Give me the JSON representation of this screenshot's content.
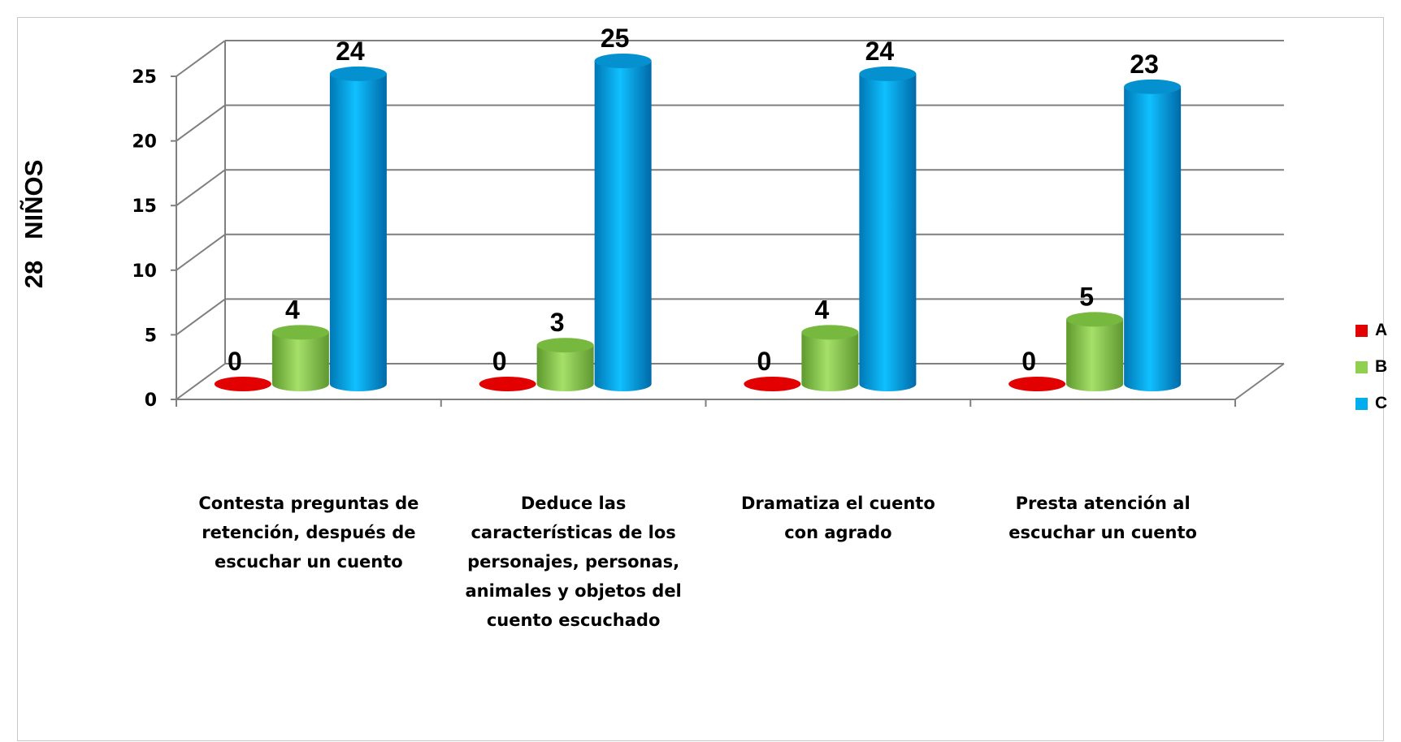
{
  "chart_data": {
    "type": "bar",
    "style": "3d-cylinder",
    "ylabel": "28   NIÑOS",
    "ylim": [
      0,
      25
    ],
    "yticks": [
      0,
      5,
      10,
      15,
      20,
      25
    ],
    "grid": true,
    "legend_position": "right",
    "categories": [
      [
        "Contesta preguntas de",
        "retención, después de",
        "escuchar un cuento"
      ],
      [
        "Deduce las",
        "características de los",
        "personajes, personas,",
        "animales y objetos del",
        "cuento escuchado"
      ],
      [
        "Dramatiza el cuento",
        "con agrado"
      ],
      [
        "Presta atención al",
        "escuchar un cuento"
      ]
    ],
    "series": [
      {
        "name": "A",
        "color": "#e30000",
        "values": [
          0,
          0,
          0,
          0
        ]
      },
      {
        "name": "B",
        "color": "#8fd14f",
        "values": [
          4,
          3,
          4,
          5
        ]
      },
      {
        "name": "C",
        "color": "#00aeef",
        "values": [
          24,
          25,
          24,
          23
        ]
      }
    ]
  }
}
